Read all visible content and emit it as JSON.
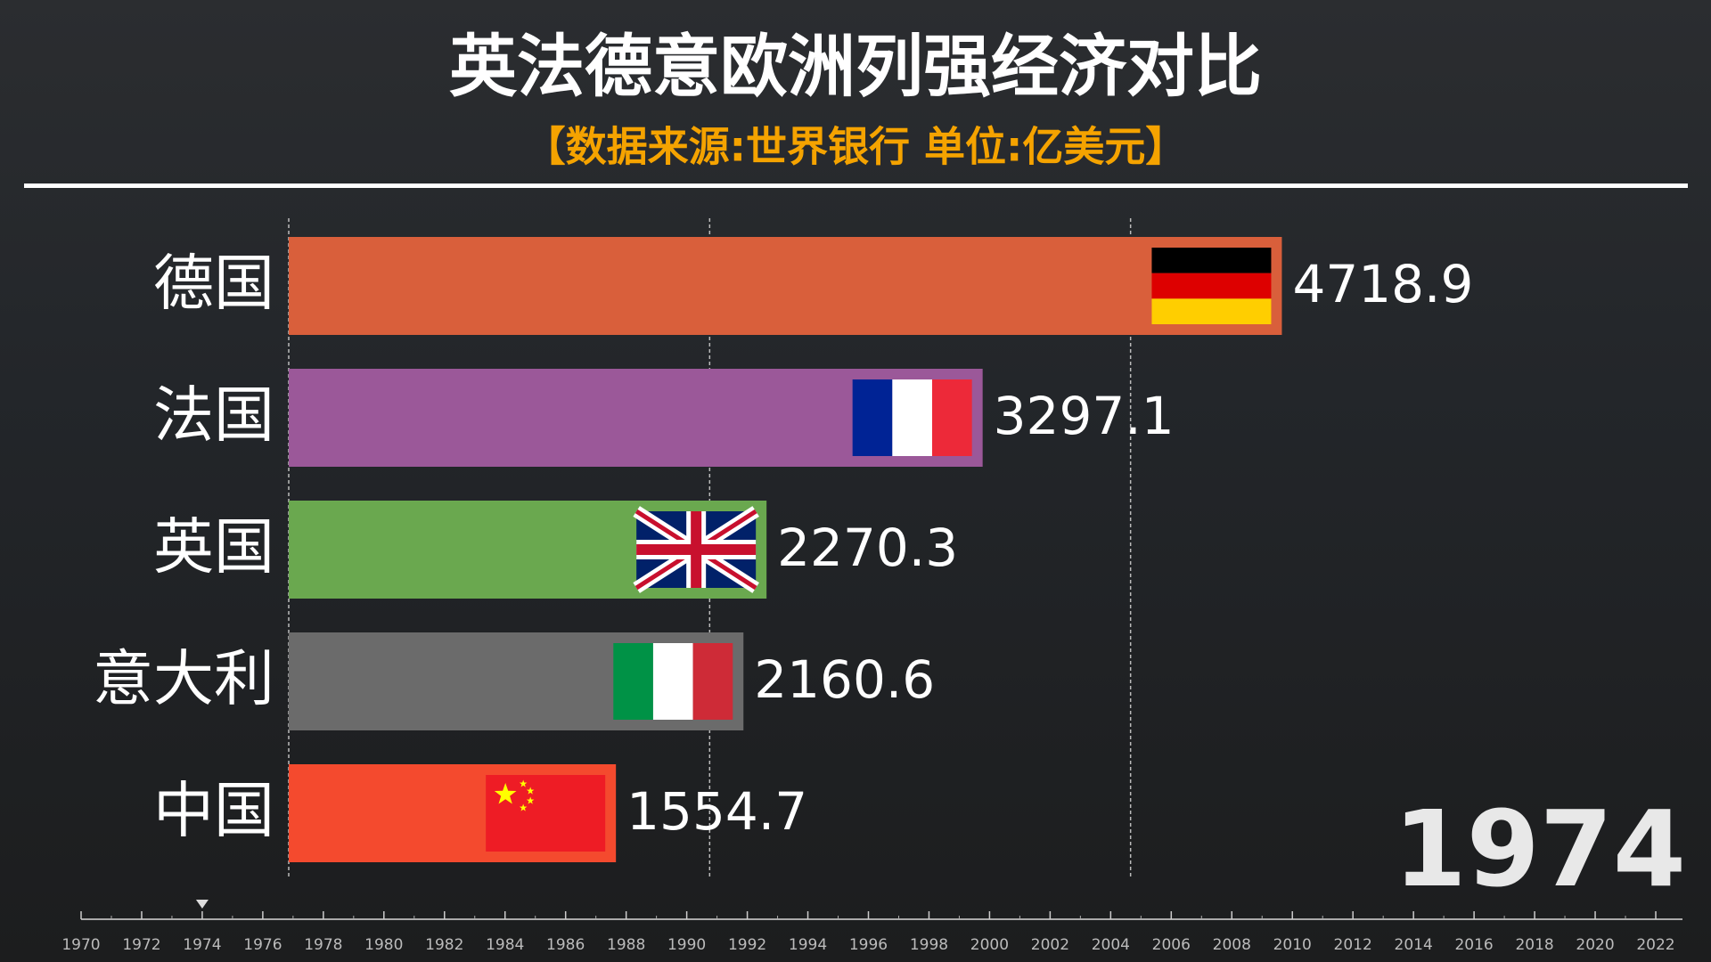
{
  "chart_data": {
    "type": "bar",
    "orientation": "horizontal",
    "title": "英法德意欧洲列强经济对比",
    "subtitle": "【数据来源:世界银行 单位:亿美元】",
    "categories": [
      "德国",
      "法国",
      "英国",
      "意大利",
      "中国"
    ],
    "values": [
      4718.9,
      3297.1,
      2270.3,
      2160.6,
      1554.7
    ],
    "colors": [
      "#d95f3b",
      "#9b5899",
      "#6aa84f",
      "#6b6b6b",
      "#f44a2e"
    ],
    "xlim": [
      0,
      6000
    ],
    "xticks": [
      0,
      2000,
      4000
    ],
    "grid": true,
    "year": 1974,
    "timeline": {
      "lim": [
        1970,
        2022
      ],
      "ticks": [
        1970,
        1972,
        1974,
        1976,
        1978,
        1980,
        1982,
        1984,
        1986,
        1988,
        1990,
        1992,
        1994,
        1996,
        1998,
        2000,
        2002,
        2004,
        2006,
        2008,
        2010,
        2012,
        2014,
        2016,
        2018,
        2020,
        2022
      ]
    }
  }
}
